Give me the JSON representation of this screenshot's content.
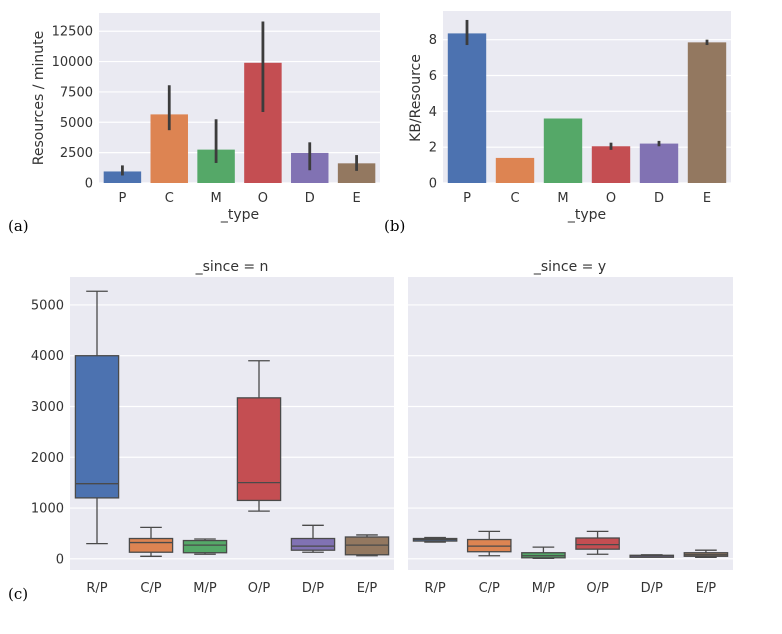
{
  "panel_labels": [
    "(a)",
    "(b)",
    "(c)"
  ],
  "chart_data": [
    {
      "type": "bar",
      "categories": [
        "P",
        "C",
        "M",
        "O",
        "D",
        "E"
      ],
      "values": [
        950,
        5650,
        2750,
        9900,
        2480,
        1620
      ],
      "error_bars": [
        [
          620,
          1450
        ],
        [
          4350,
          8050
        ],
        [
          1650,
          5250
        ],
        [
          5850,
          13300
        ],
        [
          1050,
          3350
        ],
        [
          1000,
          2300
        ]
      ],
      "colors": [
        "#4c72b0",
        "#dd8452",
        "#55a868",
        "#c44e52",
        "#8172b3",
        "#937860"
      ],
      "xlabel": "_type",
      "ylabel": "Resources / minute",
      "ylim": [
        0,
        14000
      ],
      "yticks": [
        0,
        2500,
        5000,
        7500,
        10000,
        12500
      ],
      "ytick_labels": [
        "0",
        "2500",
        "5000",
        "7500",
        "10000",
        "12500"
      ]
    },
    {
      "type": "bar",
      "categories": [
        "P",
        "C",
        "M",
        "O",
        "D",
        "E"
      ],
      "values": [
        8.35,
        1.4,
        3.6,
        2.05,
        2.2,
        7.85
      ],
      "error_bars": [
        [
          7.7,
          9.1
        ],
        [
          1.4,
          1.4
        ],
        [
          3.6,
          3.6
        ],
        [
          1.85,
          2.25
        ],
        [
          2.05,
          2.35
        ],
        [
          7.7,
          8.0
        ]
      ],
      "colors": [
        "#4c72b0",
        "#dd8452",
        "#55a868",
        "#c44e52",
        "#8172b3",
        "#937860"
      ],
      "xlabel": "_type",
      "ylabel": "KB/Resource",
      "ylim": [
        0,
        9.6
      ],
      "yticks": [
        0,
        2,
        4,
        6,
        8
      ],
      "ytick_labels": [
        "0",
        "2",
        "4",
        "6",
        "8"
      ]
    },
    {
      "type": "box",
      "facets": [
        "_since = n",
        "_since = y"
      ],
      "categories": [
        "R/P",
        "C/P",
        "M/P",
        "O/P",
        "D/P",
        "E/P"
      ],
      "colors": [
        "#4c72b0",
        "#dd8452",
        "#55a868",
        "#c44e52",
        "#8172b3",
        "#937860"
      ],
      "ylim": [
        -220,
        5550
      ],
      "yticks": [
        0,
        1000,
        2000,
        3000,
        4000,
        5000
      ],
      "ytick_labels": [
        "0",
        "1000",
        "2000",
        "3000",
        "4000",
        "5000"
      ],
      "series": [
        {
          "name": "_since = n",
          "boxes": [
            {
              "min": 300,
              "q1": 1200,
              "median": 1480,
              "q3": 4000,
              "max": 5270
            },
            {
              "min": 50,
              "q1": 130,
              "median": 320,
              "q3": 400,
              "max": 620
            },
            {
              "min": 90,
              "q1": 120,
              "median": 270,
              "q3": 360,
              "max": 390
            },
            {
              "min": 940,
              "q1": 1150,
              "median": 1500,
              "q3": 3170,
              "max": 3900
            },
            {
              "min": 130,
              "q1": 170,
              "median": 250,
              "q3": 400,
              "max": 660
            },
            {
              "min": 60,
              "q1": 80,
              "median": 270,
              "q3": 430,
              "max": 470
            }
          ]
        },
        {
          "name": "_since = y",
          "boxes": [
            {
              "min": 330,
              "q1": 350,
              "median": 380,
              "q3": 400,
              "max": 420
            },
            {
              "min": 60,
              "q1": 140,
              "median": 250,
              "q3": 380,
              "max": 540
            },
            {
              "min": 10,
              "q1": 20,
              "median": 60,
              "q3": 120,
              "max": 230
            },
            {
              "min": 90,
              "q1": 190,
              "median": 280,
              "q3": 410,
              "max": 540
            },
            {
              "min": 40,
              "q1": 50,
              "median": 60,
              "q3": 70,
              "max": 80
            },
            {
              "min": 30,
              "q1": 50,
              "median": 80,
              "q3": 120,
              "max": 170
            }
          ]
        }
      ]
    }
  ]
}
